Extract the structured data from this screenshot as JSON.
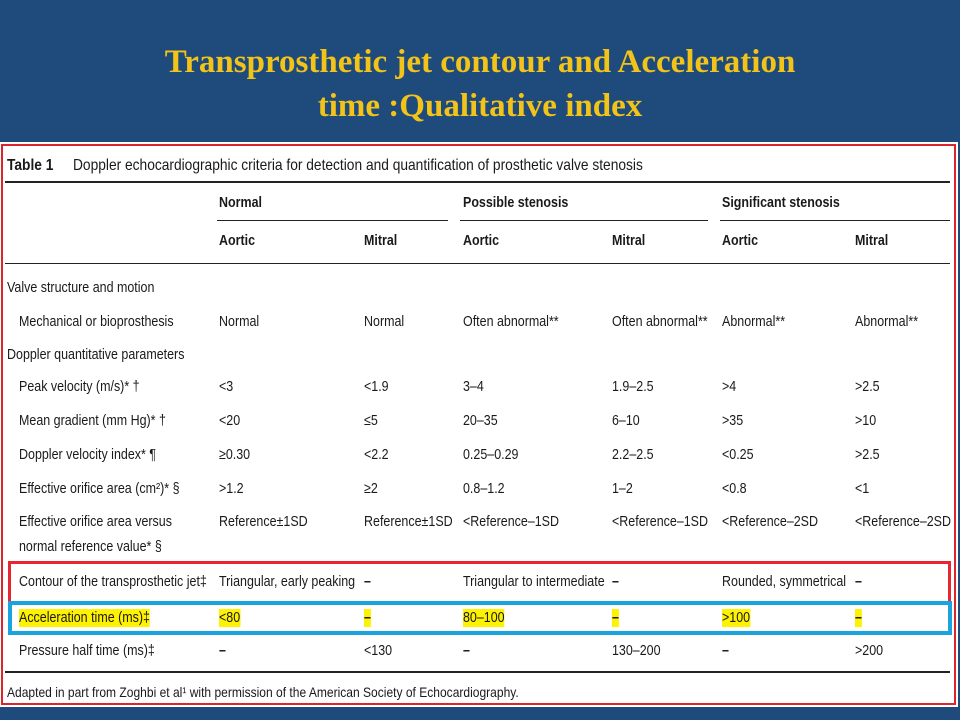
{
  "slide": {
    "title_line1": "Transprosthetic jet contour and Acceleration",
    "title_line2": "time :Qualitative index"
  },
  "table": {
    "label": "Table 1",
    "caption": "Doppler echocardiographic criteria for detection and quantification of prosthetic valve stenosis",
    "groups": [
      "Normal",
      "Possible stenosis",
      "Significant stenosis"
    ],
    "subheads": [
      "Aortic",
      "Mitral",
      "Aortic",
      "Mitral",
      "Aortic",
      "Mitral"
    ],
    "section_structure": "Valve structure and motion",
    "section_doppler": "Doppler quantitative parameters",
    "rows": [
      {
        "label": "Mechanical or bioprosthesis",
        "cells": [
          "Normal",
          "Normal",
          "Often abnormal**",
          "Often abnormal**",
          "Abnormal**",
          "Abnormal**"
        ]
      },
      {
        "label": "Peak velocity (m/s)* †",
        "cells": [
          "<3",
          "<1.9",
          "3–4",
          "1.9–2.5",
          ">4",
          ">2.5"
        ]
      },
      {
        "label": "Mean gradient (mm Hg)* †",
        "cells": [
          "<20",
          "≤5",
          "20–35",
          "6–10",
          ">35",
          ">10"
        ]
      },
      {
        "label": "Doppler velocity index* ¶",
        "cells": [
          "≥0.30",
          "<2.2",
          "0.25–0.29",
          "2.2–2.5",
          "<0.25",
          ">2.5"
        ]
      },
      {
        "label": "Effective orifice area (cm²)* §",
        "cells": [
          ">1.2",
          "≥2",
          "0.8–1.2",
          "1–2",
          "<0.8",
          "<1"
        ]
      },
      {
        "label": "Effective orifice area versus",
        "label2": "normal reference value* §",
        "cells": [
          "Reference±1SD",
          "Reference±1SD",
          "<Reference–1SD",
          "<Reference–1SD",
          "<Reference–2SD",
          "<Reference–2SD"
        ]
      },
      {
        "label": "Contour of the transprosthetic jet‡",
        "cells": [
          "Triangular, early peaking",
          "–",
          "Triangular to intermediate",
          "–",
          "Rounded, symmetrical",
          "–"
        ]
      },
      {
        "label": "Acceleration time (ms)‡",
        "cells": [
          "<80",
          "–",
          "80–100",
          "–",
          ">100",
          "–"
        ]
      },
      {
        "label": "Pressure half time (ms)‡",
        "cells": [
          "–",
          "<130",
          "–",
          "130–200",
          "–",
          ">200"
        ]
      }
    ],
    "footnote": "Adapted in part from Zoghbi et al¹ with permission of the American Society of Echocardiography."
  },
  "colors": {
    "background": "#1f4a7c",
    "title": "#f2c318",
    "highlight": "#fff200",
    "red_box": "#e8262f",
    "blue_box": "#1aa3dc"
  }
}
